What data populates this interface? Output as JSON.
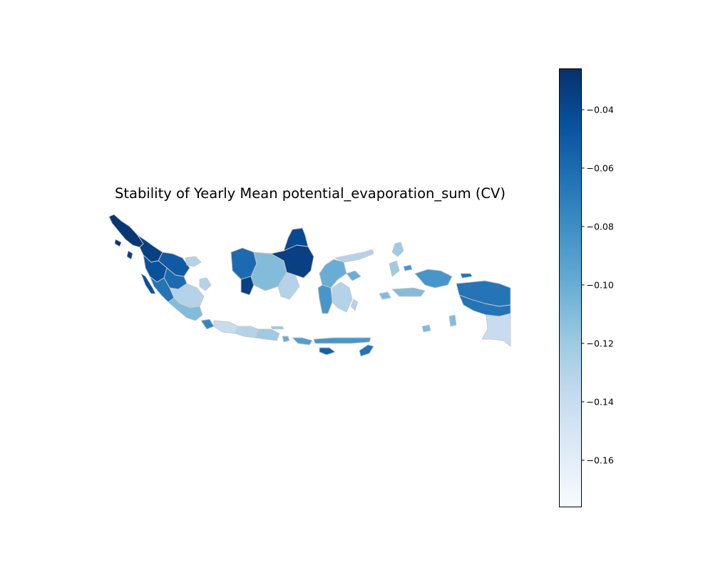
{
  "title": "Stability of Yearly Mean potential_evaporation_sum (CV)",
  "colorbar": {
    "colormap": "Blues",
    "min": -0.176,
    "max": -0.026,
    "ticks": [
      {
        "value": -0.04,
        "label": "−0.04"
      },
      {
        "value": -0.06,
        "label": "−0.06"
      },
      {
        "value": -0.08,
        "label": "−0.08"
      },
      {
        "value": -0.1,
        "label": "−0.10"
      },
      {
        "value": -0.12,
        "label": "−0.12"
      },
      {
        "value": -0.14,
        "label": "−0.14"
      },
      {
        "value": -0.16,
        "label": "−0.16"
      }
    ]
  },
  "regions": [
    {
      "name": "Aceh",
      "value": -0.03
    },
    {
      "name": "North Sumatra",
      "value": -0.035
    },
    {
      "name": "West Sumatra",
      "value": -0.045
    },
    {
      "name": "Riau",
      "value": -0.05
    },
    {
      "name": "Jambi",
      "value": -0.06
    },
    {
      "name": "Bengkulu",
      "value": -0.065
    },
    {
      "name": "South Sumatra",
      "value": -0.13
    },
    {
      "name": "Lampung",
      "value": -0.11
    },
    {
      "name": "Bangka Belitung",
      "value": -0.13
    },
    {
      "name": "Riau Islands",
      "value": -0.13
    },
    {
      "name": "West Kalimantan",
      "value": -0.06
    },
    {
      "name": "Central Kalimantan",
      "value": -0.11
    },
    {
      "name": "South Kalimantan",
      "value": -0.13
    },
    {
      "name": "East Kalimantan",
      "value": -0.035
    },
    {
      "name": "North Kalimantan",
      "value": -0.04
    },
    {
      "name": "Banten",
      "value": -0.075
    },
    {
      "name": "West Java",
      "value": -0.14
    },
    {
      "name": "Central Java",
      "value": -0.13
    },
    {
      "name": "East Java",
      "value": -0.12
    },
    {
      "name": "Bali",
      "value": -0.1
    },
    {
      "name": "West Nusa Tenggara",
      "value": -0.09
    },
    {
      "name": "East Nusa Tenggara",
      "value": -0.085
    },
    {
      "name": "Sumba",
      "value": -0.055
    },
    {
      "name": "Timor",
      "value": -0.065
    },
    {
      "name": "North Sulawesi",
      "value": -0.13
    },
    {
      "name": "Central Sulawesi",
      "value": -0.1
    },
    {
      "name": "South Sulawesi",
      "value": -0.085
    },
    {
      "name": "Southeast Sulawesi",
      "value": -0.13
    },
    {
      "name": "North Maluku",
      "value": -0.12
    },
    {
      "name": "Maluku",
      "value": -0.11
    },
    {
      "name": "West Papua",
      "value": -0.085
    },
    {
      "name": "Papua",
      "value": -0.065
    },
    {
      "name": "South Papua",
      "value": -0.14
    }
  ]
}
